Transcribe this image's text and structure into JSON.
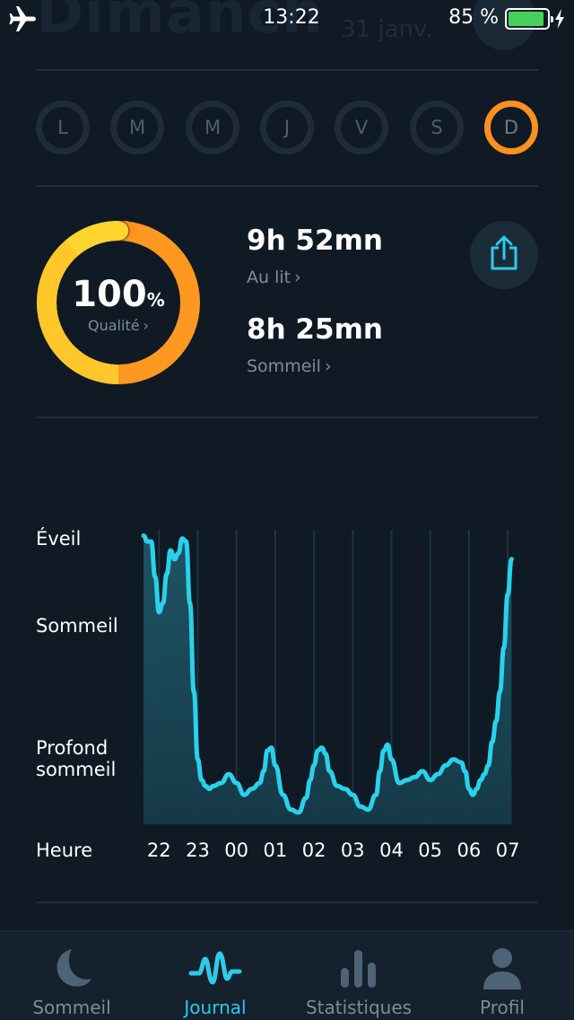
{
  "status_bar": {
    "time": "13:22",
    "battery_percent": "85 %",
    "battery_level": 0.85,
    "icons": [
      "airplane-icon",
      "battery-icon",
      "charging-bolt-icon"
    ]
  },
  "header": {
    "title_partial": "Dimanch",
    "date_partial": "31 janv."
  },
  "days": [
    {
      "label": "L",
      "active": false
    },
    {
      "label": "M",
      "active": false
    },
    {
      "label": "M",
      "active": false
    },
    {
      "label": "J",
      "active": false
    },
    {
      "label": "V",
      "active": false
    },
    {
      "label": "S",
      "active": false
    },
    {
      "label": "D",
      "active": true
    }
  ],
  "summary": {
    "quality_value": "100",
    "quality_unit": "%",
    "quality_label": "Qualité",
    "quality_fraction": 1.0,
    "in_bed_value": "9h 52mn",
    "in_bed_label": "Au lit",
    "sleep_value": "8h 25mn",
    "sleep_label": "Sommeil",
    "share_icon": "share-icon"
  },
  "chart_data": {
    "type": "area",
    "y_categories": [
      "Éveil",
      "Sommeil",
      "Profond sommeil"
    ],
    "x_axis_label": "Heure",
    "x_ticks": [
      "22",
      "23",
      "00",
      "01",
      "02",
      "03",
      "04",
      "05",
      "06",
      "07"
    ],
    "x_start_hour": 21.6,
    "x_end_hour": 31.6,
    "y_range": [
      0,
      1
    ],
    "grid": true,
    "points": [
      [
        21.6,
        0.98
      ],
      [
        21.7,
        0.96
      ],
      [
        21.8,
        0.96
      ],
      [
        21.9,
        0.84
      ],
      [
        22.0,
        0.72
      ],
      [
        22.1,
        0.75
      ],
      [
        22.2,
        0.85
      ],
      [
        22.3,
        0.93
      ],
      [
        22.4,
        0.9
      ],
      [
        22.5,
        0.92
      ],
      [
        22.6,
        0.97
      ],
      [
        22.7,
        0.96
      ],
      [
        22.8,
        0.75
      ],
      [
        22.9,
        0.45
      ],
      [
        23.0,
        0.22
      ],
      [
        23.1,
        0.15
      ],
      [
        23.2,
        0.13
      ],
      [
        23.3,
        0.12
      ],
      [
        23.4,
        0.13
      ],
      [
        23.6,
        0.14
      ],
      [
        23.8,
        0.17
      ],
      [
        24.0,
        0.14
      ],
      [
        24.2,
        0.1
      ],
      [
        24.4,
        0.12
      ],
      [
        24.6,
        0.14
      ],
      [
        24.7,
        0.18
      ],
      [
        24.8,
        0.25
      ],
      [
        24.9,
        0.26
      ],
      [
        25.0,
        0.2
      ],
      [
        25.2,
        0.1
      ],
      [
        25.4,
        0.05
      ],
      [
        25.6,
        0.04
      ],
      [
        25.8,
        0.09
      ],
      [
        25.9,
        0.15
      ],
      [
        26.0,
        0.2
      ],
      [
        26.1,
        0.25
      ],
      [
        26.2,
        0.26
      ],
      [
        26.3,
        0.24
      ],
      [
        26.4,
        0.18
      ],
      [
        26.6,
        0.13
      ],
      [
        26.8,
        0.12
      ],
      [
        27.0,
        0.1
      ],
      [
        27.2,
        0.06
      ],
      [
        27.4,
        0.05
      ],
      [
        27.6,
        0.1
      ],
      [
        27.7,
        0.18
      ],
      [
        27.8,
        0.25
      ],
      [
        27.9,
        0.27
      ],
      [
        28.0,
        0.22
      ],
      [
        28.2,
        0.14
      ],
      [
        28.4,
        0.15
      ],
      [
        28.6,
        0.16
      ],
      [
        28.8,
        0.18
      ],
      [
        29.0,
        0.15
      ],
      [
        29.2,
        0.17
      ],
      [
        29.4,
        0.2
      ],
      [
        29.6,
        0.22
      ],
      [
        29.8,
        0.21
      ],
      [
        29.9,
        0.18
      ],
      [
        30.0,
        0.12
      ],
      [
        30.1,
        0.1
      ],
      [
        30.2,
        0.12
      ],
      [
        30.3,
        0.15
      ],
      [
        30.4,
        0.17
      ],
      [
        30.5,
        0.2
      ],
      [
        30.6,
        0.28
      ],
      [
        30.7,
        0.35
      ],
      [
        30.8,
        0.45
      ],
      [
        30.9,
        0.6
      ],
      [
        31.0,
        0.78
      ],
      [
        31.1,
        0.9
      ]
    ]
  },
  "tabs": [
    {
      "label": "Sommeil",
      "icon": "moon-icon",
      "active": false
    },
    {
      "label": "Journal",
      "icon": "pulse-icon",
      "active": true
    },
    {
      "label": "Statistiques",
      "icon": "bar-chart-icon",
      "active": false
    },
    {
      "label": "Profil",
      "icon": "person-icon",
      "active": false
    }
  ],
  "colors": {
    "background": "#0f1a25",
    "accent_orange": "#ff8f1f",
    "accent_yellow": "#ffd52e",
    "accent_cyan": "#2ecbe8",
    "muted_text": "#7d8c99"
  }
}
